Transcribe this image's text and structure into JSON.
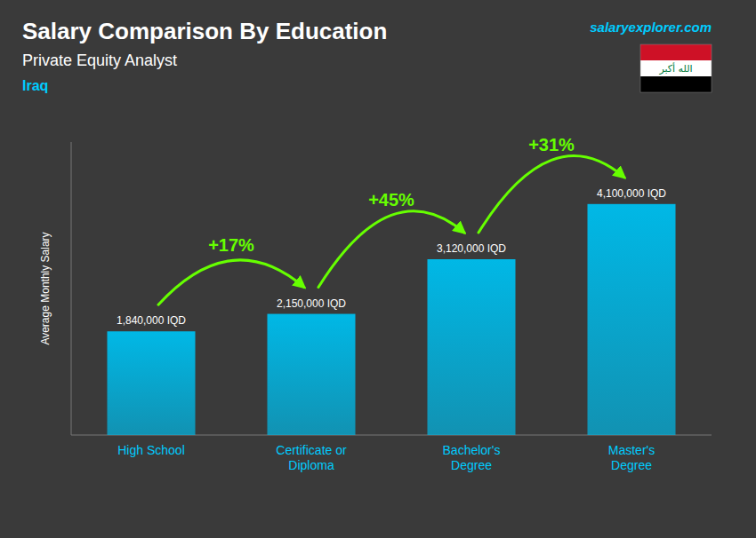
{
  "chart_data": {
    "type": "bar",
    "title": "Salary Comparison By Education",
    "subtitle": "Private Equity Analyst",
    "country": "Iraq",
    "ylabel": "Average Monthly Salary",
    "source": "salaryexplorer.com",
    "flag_text": "الله أكبر",
    "categories": [
      "High School",
      "Certificate or\nDiploma",
      "Bachelor's\nDegree",
      "Master's\nDegree"
    ],
    "values": [
      1840000,
      2150000,
      3120000,
      4100000
    ],
    "value_labels": [
      "1,840,000 IQD",
      "2,150,000 IQD",
      "3,120,000 IQD",
      "4,100,000 IQD"
    ],
    "annotations": [
      "+17%",
      "+45%",
      "+31%"
    ],
    "color": "#00b8e6",
    "ylim": [
      0,
      5200000
    ],
    "data_labels": true,
    "tick_labels": false,
    "grid": false
  }
}
